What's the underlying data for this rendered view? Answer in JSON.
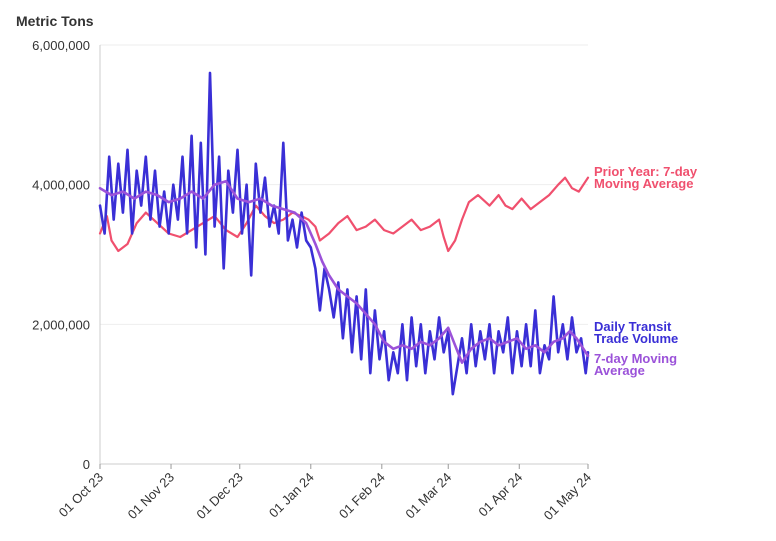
{
  "chart_data": {
    "type": "line",
    "y_axis_title": "Metric Tons",
    "ylim": [
      0,
      6000000
    ],
    "y_ticks": [
      {
        "value": 0,
        "label": "0"
      },
      {
        "value": 2000000,
        "label": "2,000,000"
      },
      {
        "value": 4000000,
        "label": "4,000,000"
      },
      {
        "value": 6000000,
        "label": "6,000,000"
      }
    ],
    "x_range_days": [
      0,
      213
    ],
    "x_ticks": [
      {
        "day": 0,
        "label": "01 Oct 23"
      },
      {
        "day": 31,
        "label": "01 Nov 23"
      },
      {
        "day": 61,
        "label": "01 Dec 23"
      },
      {
        "day": 92,
        "label": "01 Jan 24"
      },
      {
        "day": 123,
        "label": "01 Feb 24"
      },
      {
        "day": 152,
        "label": "01 Mar 24"
      },
      {
        "day": 183,
        "label": "01 Apr 24"
      },
      {
        "day": 213,
        "label": "01 May 24"
      }
    ],
    "series": [
      {
        "name": "Prior Year: 7-day Moving Average",
        "label_lines": [
          "Prior Year: 7-day",
          "Moving Average"
        ],
        "color": "#f0506e",
        "points": [
          [
            0,
            3300000
          ],
          [
            3,
            3550000
          ],
          [
            5,
            3200000
          ],
          [
            8,
            3050000
          ],
          [
            12,
            3150000
          ],
          [
            16,
            3450000
          ],
          [
            20,
            3600000
          ],
          [
            25,
            3450000
          ],
          [
            30,
            3300000
          ],
          [
            35,
            3250000
          ],
          [
            40,
            3350000
          ],
          [
            45,
            3450000
          ],
          [
            50,
            3550000
          ],
          [
            55,
            3350000
          ],
          [
            60,
            3250000
          ],
          [
            64,
            3450000
          ],
          [
            68,
            3700000
          ],
          [
            72,
            3550000
          ],
          [
            76,
            3450000
          ],
          [
            80,
            3500000
          ],
          [
            84,
            3600000
          ],
          [
            88,
            3550000
          ],
          [
            91,
            3500000
          ],
          [
            94,
            3400000
          ],
          [
            96,
            3200000
          ],
          [
            100,
            3300000
          ],
          [
            104,
            3450000
          ],
          [
            108,
            3550000
          ],
          [
            112,
            3350000
          ],
          [
            116,
            3400000
          ],
          [
            120,
            3500000
          ],
          [
            124,
            3350000
          ],
          [
            128,
            3300000
          ],
          [
            132,
            3400000
          ],
          [
            136,
            3500000
          ],
          [
            140,
            3350000
          ],
          [
            144,
            3400000
          ],
          [
            148,
            3500000
          ],
          [
            150,
            3250000
          ],
          [
            152,
            3050000
          ],
          [
            155,
            3200000
          ],
          [
            158,
            3500000
          ],
          [
            161,
            3750000
          ],
          [
            165,
            3850000
          ],
          [
            170,
            3700000
          ],
          [
            174,
            3850000
          ],
          [
            177,
            3700000
          ],
          [
            180,
            3650000
          ],
          [
            184,
            3800000
          ],
          [
            188,
            3650000
          ],
          [
            192,
            3750000
          ],
          [
            196,
            3850000
          ],
          [
            200,
            4000000
          ],
          [
            203,
            4100000
          ],
          [
            206,
            3950000
          ],
          [
            209,
            3900000
          ],
          [
            213,
            4100000
          ]
        ]
      },
      {
        "name": "Daily Transit Trade Volume",
        "label_lines": [
          "Daily Transit",
          "Trade Volume"
        ],
        "color": "#3a2fd6",
        "points": [
          [
            0,
            3700000
          ],
          [
            2,
            3300000
          ],
          [
            4,
            4400000
          ],
          [
            6,
            3500000
          ],
          [
            8,
            4300000
          ],
          [
            10,
            3600000
          ],
          [
            12,
            4500000
          ],
          [
            14,
            3300000
          ],
          [
            16,
            4200000
          ],
          [
            18,
            3700000
          ],
          [
            20,
            4400000
          ],
          [
            22,
            3500000
          ],
          [
            24,
            4200000
          ],
          [
            26,
            3400000
          ],
          [
            28,
            3900000
          ],
          [
            30,
            3300000
          ],
          [
            32,
            4000000
          ],
          [
            34,
            3500000
          ],
          [
            36,
            4400000
          ],
          [
            38,
            3300000
          ],
          [
            40,
            4700000
          ],
          [
            42,
            3100000
          ],
          [
            44,
            4600000
          ],
          [
            46,
            3000000
          ],
          [
            48,
            5600000
          ],
          [
            50,
            3400000
          ],
          [
            52,
            4400000
          ],
          [
            54,
            2800000
          ],
          [
            56,
            4200000
          ],
          [
            58,
            3600000
          ],
          [
            60,
            4500000
          ],
          [
            62,
            3300000
          ],
          [
            64,
            4000000
          ],
          [
            66,
            2700000
          ],
          [
            68,
            4300000
          ],
          [
            70,
            3600000
          ],
          [
            72,
            4100000
          ],
          [
            74,
            3400000
          ],
          [
            76,
            3700000
          ],
          [
            78,
            3300000
          ],
          [
            80,
            4600000
          ],
          [
            82,
            3200000
          ],
          [
            84,
            3500000
          ],
          [
            86,
            3100000
          ],
          [
            88,
            3600000
          ],
          [
            90,
            3200000
          ],
          [
            92,
            3100000
          ],
          [
            94,
            2800000
          ],
          [
            96,
            2200000
          ],
          [
            98,
            2800000
          ],
          [
            100,
            2500000
          ],
          [
            102,
            2100000
          ],
          [
            104,
            2600000
          ],
          [
            106,
            1800000
          ],
          [
            108,
            2500000
          ],
          [
            110,
            1600000
          ],
          [
            112,
            2400000
          ],
          [
            114,
            1500000
          ],
          [
            116,
            2500000
          ],
          [
            118,
            1300000
          ],
          [
            120,
            2200000
          ],
          [
            122,
            1500000
          ],
          [
            124,
            1900000
          ],
          [
            126,
            1200000
          ],
          [
            128,
            1600000
          ],
          [
            130,
            1300000
          ],
          [
            132,
            2000000
          ],
          [
            134,
            1200000
          ],
          [
            136,
            2100000
          ],
          [
            138,
            1400000
          ],
          [
            140,
            2000000
          ],
          [
            142,
            1300000
          ],
          [
            144,
            1900000
          ],
          [
            146,
            1500000
          ],
          [
            148,
            2100000
          ],
          [
            150,
            1600000
          ],
          [
            152,
            1900000
          ],
          [
            154,
            1000000
          ],
          [
            156,
            1400000
          ],
          [
            158,
            1800000
          ],
          [
            160,
            1300000
          ],
          [
            162,
            2000000
          ],
          [
            164,
            1400000
          ],
          [
            166,
            1900000
          ],
          [
            168,
            1500000
          ],
          [
            170,
            2000000
          ],
          [
            172,
            1300000
          ],
          [
            174,
            1900000
          ],
          [
            176,
            1600000
          ],
          [
            178,
            2100000
          ],
          [
            180,
            1300000
          ],
          [
            182,
            1900000
          ],
          [
            184,
            1400000
          ],
          [
            186,
            2000000
          ],
          [
            188,
            1400000
          ],
          [
            190,
            2200000
          ],
          [
            192,
            1300000
          ],
          [
            194,
            1700000
          ],
          [
            196,
            1500000
          ],
          [
            198,
            2400000
          ],
          [
            200,
            1600000
          ],
          [
            202,
            2000000
          ],
          [
            204,
            1500000
          ],
          [
            206,
            2100000
          ],
          [
            208,
            1600000
          ],
          [
            210,
            1800000
          ],
          [
            212,
            1300000
          ],
          [
            213,
            1600000
          ]
        ]
      },
      {
        "name": "7-day Moving Average",
        "label_lines": [
          "7-day Moving",
          "Average"
        ],
        "color": "#9b52d9",
        "points": [
          [
            0,
            3950000
          ],
          [
            5,
            3850000
          ],
          [
            10,
            3900000
          ],
          [
            15,
            3800000
          ],
          [
            20,
            3900000
          ],
          [
            25,
            3850000
          ],
          [
            30,
            3750000
          ],
          [
            35,
            3800000
          ],
          [
            40,
            3900000
          ],
          [
            45,
            3800000
          ],
          [
            50,
            4000000
          ],
          [
            55,
            4050000
          ],
          [
            60,
            3800000
          ],
          [
            65,
            3750000
          ],
          [
            70,
            3800000
          ],
          [
            75,
            3700000
          ],
          [
            80,
            3650000
          ],
          [
            85,
            3600000
          ],
          [
            90,
            3450000
          ],
          [
            94,
            3150000
          ],
          [
            97,
            2900000
          ],
          [
            100,
            2700000
          ],
          [
            104,
            2500000
          ],
          [
            108,
            2400000
          ],
          [
            112,
            2300000
          ],
          [
            116,
            2150000
          ],
          [
            120,
            2000000
          ],
          [
            124,
            1750000
          ],
          [
            128,
            1650000
          ],
          [
            132,
            1700000
          ],
          [
            136,
            1650000
          ],
          [
            140,
            1750000
          ],
          [
            144,
            1700000
          ],
          [
            148,
            1800000
          ],
          [
            152,
            1950000
          ],
          [
            155,
            1700000
          ],
          [
            158,
            1450000
          ],
          [
            162,
            1650000
          ],
          [
            166,
            1750000
          ],
          [
            170,
            1800000
          ],
          [
            174,
            1700000
          ],
          [
            178,
            1750000
          ],
          [
            182,
            1800000
          ],
          [
            186,
            1650000
          ],
          [
            190,
            1700000
          ],
          [
            194,
            1600000
          ],
          [
            198,
            1750000
          ],
          [
            202,
            1800000
          ],
          [
            205,
            1900000
          ],
          [
            208,
            1800000
          ],
          [
            211,
            1650000
          ],
          [
            213,
            1550000
          ]
        ]
      }
    ]
  }
}
